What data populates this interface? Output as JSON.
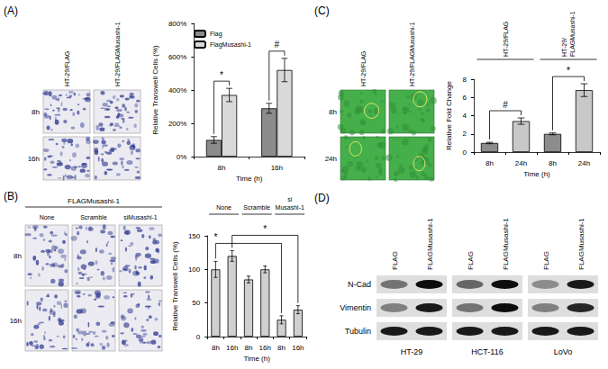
{
  "figure": {
    "A": {
      "letter": "(A)",
      "image_columns": [
        "HT-29/FLAG",
        "HT-29/FLAGMusashi-1"
      ],
      "image_rows": [
        "8h",
        "16h"
      ]
    },
    "B": {
      "letter": "(B)",
      "image_header": "FLAGMusashi-1",
      "image_columns": [
        "None",
        "Scramble",
        "siMusashi-1"
      ],
      "image_rows": [
        "8h",
        "16h"
      ]
    },
    "C": {
      "letter": "(C)",
      "image_columns": [
        "HT-29/FLAG",
        "HT-29/FLAGMusashi-1"
      ],
      "image_rows": [
        "8h",
        "24h"
      ]
    },
    "D": {
      "letter": "(D)",
      "lanes": [
        "FLAG",
        "FLAGMusashi-1"
      ],
      "cell_lines": [
        "HT-29",
        "HCT-116",
        "LoVo"
      ],
      "blots": [
        {
          "label": "N-Cad",
          "intensity": [
            0.55,
            0.95,
            0.6,
            0.95,
            0.45,
            0.9
          ]
        },
        {
          "label": "Vimentin",
          "intensity": [
            0.5,
            0.9,
            0.55,
            0.95,
            0.5,
            0.85
          ]
        },
        {
          "label": "Tubulin",
          "intensity": [
            0.9,
            0.9,
            0.9,
            0.9,
            0.9,
            0.9
          ]
        }
      ]
    }
  },
  "chart_data": [
    {
      "type": "bar",
      "categories": [
        "8h",
        "16h"
      ],
      "series": [
        {
          "name": "Flag",
          "color": "#8c8c8c",
          "values": [
            100,
            290
          ],
          "errors": [
            20,
            30
          ]
        },
        {
          "name": "FlagMusashi-1",
          "color": "#d9d9d9",
          "values": [
            370,
            520
          ],
          "errors": [
            40,
            70
          ]
        }
      ],
      "xlabel": "Time (h)",
      "ylabel": "Relative Transwell Cells (%)",
      "ylim": [
        0,
        800
      ],
      "yticks": [
        {
          "value": 0,
          "label": "0%"
        },
        {
          "value": 200,
          "label": "200%"
        },
        {
          "value": 400,
          "label": "400%"
        },
        {
          "value": 600,
          "label": "600%"
        },
        {
          "value": 800,
          "label": "800%"
        }
      ],
      "grid": false,
      "legend": "upper left",
      "annotations": [
        {
          "text": "*",
          "category": "8h"
        },
        {
          "text": "#",
          "category": "16h"
        }
      ]
    },
    {
      "type": "bar",
      "categories": [
        "8h",
        "16h",
        "8h",
        "16h",
        "8h",
        "16h"
      ],
      "groups": [
        "None",
        "Scramble",
        "siMusashi-1"
      ],
      "values": [
        100,
        120,
        85,
        100,
        25,
        40
      ],
      "errors": [
        12,
        8,
        5,
        5,
        6,
        6
      ],
      "color": "#d0d0d0",
      "xlabel": "Time (h)",
      "ylabel": "Relative Transwell Cells (%)",
      "ylim": [
        0,
        150
      ],
      "yticks": [
        0,
        50,
        100,
        150
      ],
      "grid": false,
      "annotations": [
        {
          "text": "*",
          "from": 0,
          "to": 4
        },
        {
          "text": "*",
          "from": 1,
          "to": 5
        }
      ]
    },
    {
      "type": "bar",
      "categories": [
        "8h",
        "24h",
        "8h",
        "24h"
      ],
      "groups": [
        "HT-29/FLAG",
        "HT-29/FLAGMusashi-1"
      ],
      "values": [
        1,
        3.4,
        2,
        6.8
      ],
      "errors": [
        0.08,
        0.35,
        0.1,
        0.7
      ],
      "colors": [
        "#8c8c8c",
        "#c8c8c8",
        "#8c8c8c",
        "#c8c8c8"
      ],
      "xlabel": "Time (h)",
      "ylabel": "Relative Fold Change",
      "ylim": [
        0,
        8
      ],
      "yticks": [
        0,
        2,
        4,
        6,
        8
      ],
      "grid": false,
      "annotations": [
        {
          "text": "#",
          "from": 0,
          "to": 1
        },
        {
          "text": "*",
          "from": 2,
          "to": 3
        }
      ]
    }
  ]
}
